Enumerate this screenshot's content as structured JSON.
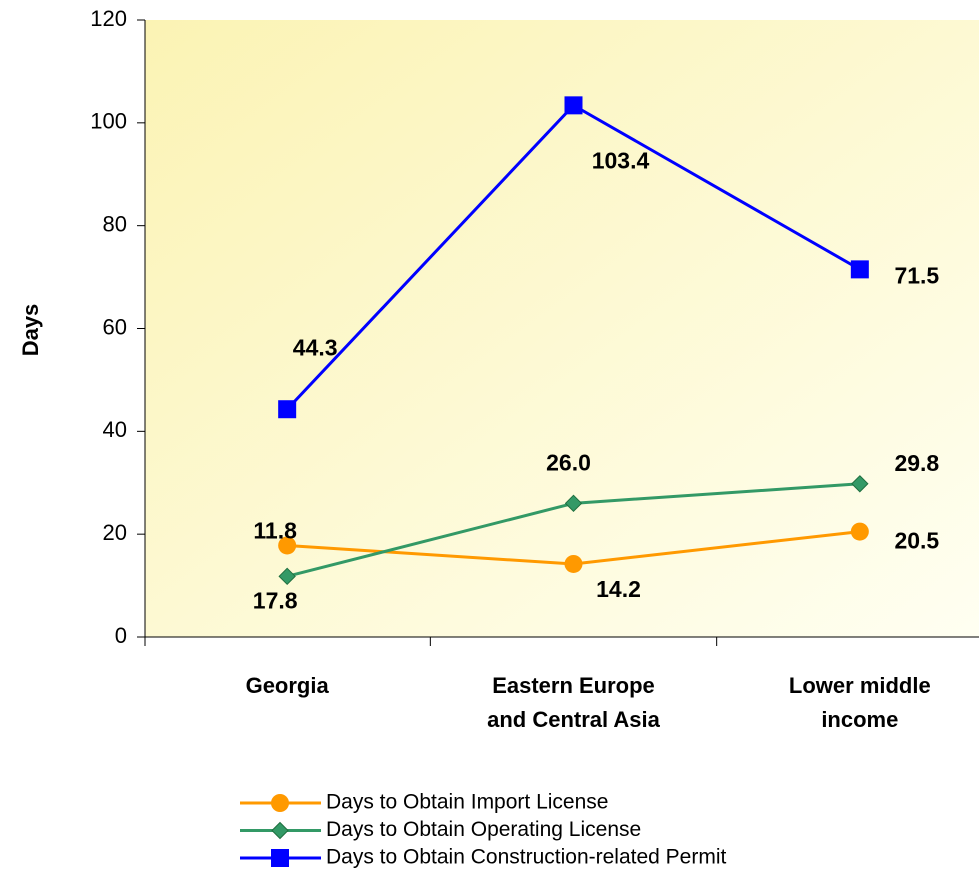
{
  "chart_data": {
    "type": "line",
    "y_label": "Days",
    "categories": [
      "Georgia",
      "Eastern Europe and Central Asia",
      "Lower middle income"
    ],
    "series": [
      {
        "name": "Days to Obtain Import License",
        "color": "#ff9900",
        "marker": "circle",
        "values": [
          17.8,
          14.2,
          20.5
        ],
        "value_labels": [
          "17.8",
          "14.2",
          "20.5"
        ]
      },
      {
        "name": "Days to Obtain Operating License",
        "color": "#339966",
        "marker": "diamond",
        "values": [
          11.8,
          26.0,
          29.8
        ],
        "value_labels": [
          "11.8",
          "26.0",
          "29.8"
        ]
      },
      {
        "name": "Days to Obtain Construction-related Permit",
        "color": "#0000ff",
        "marker": "square",
        "values": [
          44.3,
          103.4,
          71.5
        ],
        "value_labels": [
          "44.3",
          "103.4",
          "71.5"
        ]
      }
    ],
    "ylim": [
      0,
      120
    ],
    "yticks": [
      0,
      20,
      40,
      60,
      80,
      100,
      120
    ]
  }
}
